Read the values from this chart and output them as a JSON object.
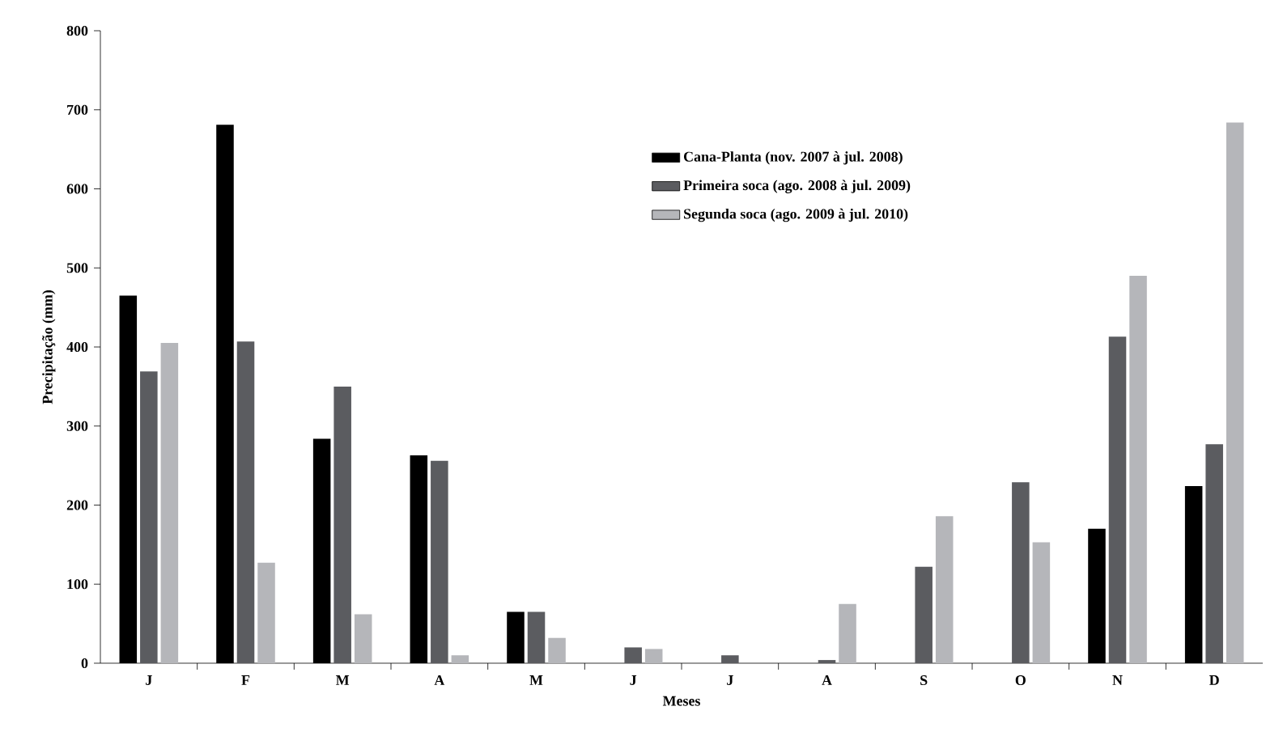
{
  "chart_data": {
    "type": "bar",
    "xlabel": "Meses",
    "ylabel": "Precipitação (mm)",
    "categories": [
      "J",
      "F",
      "M",
      "A",
      "M",
      "J",
      "J",
      "A",
      "S",
      "O",
      "N",
      "D"
    ],
    "series": [
      {
        "name": "Cana-Planta (nov. 2007 à jul. 2008)",
        "color": "#000000",
        "values": [
          465,
          681,
          284,
          263,
          65,
          0,
          0,
          0,
          0,
          0,
          170,
          224
        ]
      },
      {
        "name": "Primeira soca (ago. 2008 à jul. 2009)",
        "color": "#5b5c60",
        "values": [
          369,
          407,
          350,
          256,
          65,
          20,
          10,
          4,
          122,
          229,
          413,
          277
        ]
      },
      {
        "name": "Segunda soca (ago. 2009 à jul. 2010)",
        "color": "#b5b6ba",
        "values": [
          405,
          127,
          62,
          10,
          32,
          18,
          0,
          75,
          186,
          153,
          490,
          684
        ]
      }
    ],
    "ylim": [
      0,
      800
    ],
    "yticks": [
      0,
      100,
      200,
      300,
      400,
      500,
      600,
      700,
      800
    ],
    "legend": "top right",
    "grid": false
  }
}
